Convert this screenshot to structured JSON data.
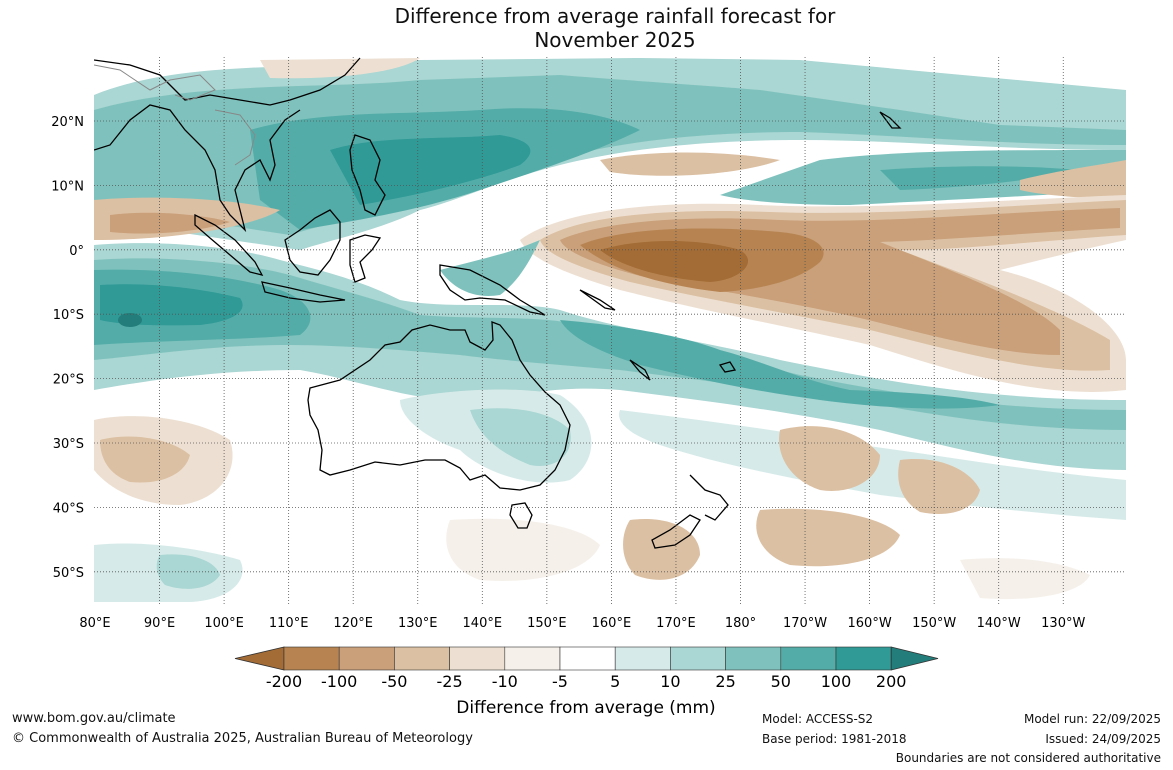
{
  "title": {
    "line1": "Difference from average rainfall forecast for",
    "line2": "November 2025"
  },
  "map": {
    "lat_labels": [
      "20°N",
      "10°N",
      "0°",
      "10°S",
      "20°S",
      "30°S",
      "40°S",
      "50°S"
    ],
    "lon_labels": [
      "80°E",
      "90°E",
      "100°E",
      "110°E",
      "120°E",
      "130°E",
      "140°E",
      "150°E",
      "160°E",
      "170°E",
      "180°",
      "170°W",
      "160°W",
      "150°W",
      "140°W",
      "130°W"
    ]
  },
  "legend": {
    "title": "Difference from average (mm)",
    "ticks": [
      "-200",
      "-100",
      "-50",
      "-25",
      "-10",
      "-5",
      "5",
      "10",
      "25",
      "50",
      "100",
      "200"
    ],
    "colors": [
      "#a36b35",
      "#b78451",
      "#c9a07a",
      "#dcc0a3",
      "#ede0d2",
      "#f5f0ea",
      "#ffffff",
      "#d6ebe9",
      "#aad6d3",
      "#7fc2bd",
      "#54aca8",
      "#2f9a96",
      "#237d7a"
    ]
  },
  "footer": {
    "website": "www.bom.gov.au/climate",
    "copyright": "© Commonwealth of Australia 2025, Australian Bureau of Meteorology",
    "model": "Model: ACCESS-S2",
    "base_period": "Base period: 1981-2018",
    "model_run": "Model run: 22/09/2025",
    "issued": "Issued: 24/09/2025",
    "boundaries": "Boundaries are not considered authoritative"
  }
}
